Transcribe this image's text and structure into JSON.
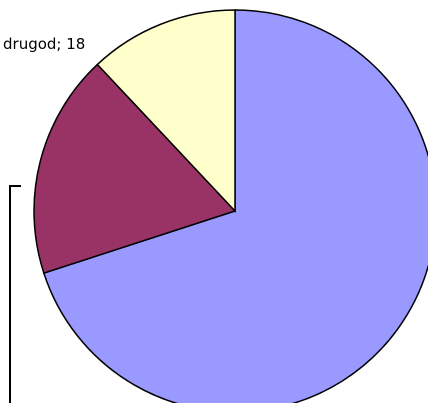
{
  "chart_data": {
    "type": "pie",
    "start_angle_deg": 0,
    "direction": "clockwise",
    "slices": [
      {
        "label": "",
        "value": 70,
        "color": "#9999ff"
      },
      {
        "label": "",
        "value": 18,
        "color": "#993366"
      },
      {
        "label": "",
        "value": 12,
        "color": "#ffffcc"
      }
    ],
    "data_labels": [
      {
        "text": "drugod; 18"
      }
    ],
    "legend": "none"
  }
}
